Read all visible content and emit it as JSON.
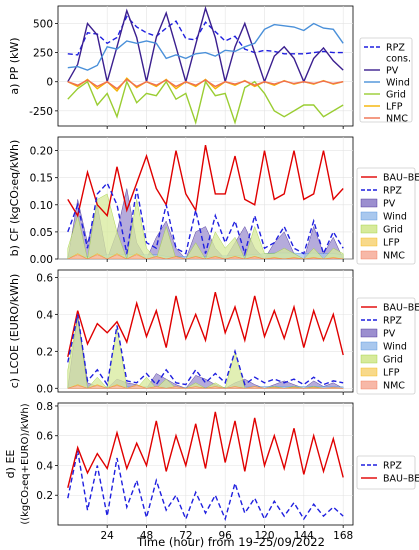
{
  "figure": {
    "xlabel": "Time (hour) from 19–25/09/2022",
    "xticks": [
      24,
      48,
      72,
      96,
      120,
      144,
      168
    ]
  },
  "colors": {
    "PV": "#3b1f8f",
    "Wind": "#4a90d9",
    "Grid": "#9acd32",
    "LFP": "#f4b400",
    "NMC": "#f07050",
    "RPZ": "#1f1fdf",
    "BAU": "#e00000",
    "PVfill": "#9c8fcf",
    "Windfill": "#a9c8ee",
    "Gridfill": "#d7ea9b",
    "LFPfill": "#f8d98a",
    "NMCfill": "#f7b8a8"
  },
  "chart_data": [
    {
      "type": "line",
      "panel": "a",
      "ylabel": "a) PP (kW)",
      "ylim": [
        -380,
        650
      ],
      "yticks": [
        -250,
        0,
        250,
        500
      ],
      "legend": [
        "RPZ cons.",
        "PV",
        "Wind",
        "Grid",
        "LFP",
        "NMC"
      ],
      "legend_labels": [
        "RPZ",
        "cons.",
        "PV",
        "Wind",
        "Grid",
        "LFP",
        "NMC"
      ],
      "x": [
        0,
        6,
        12,
        18,
        24,
        30,
        36,
        42,
        48,
        54,
        60,
        66,
        72,
        78,
        84,
        90,
        96,
        102,
        108,
        114,
        120,
        126,
        132,
        138,
        144,
        150,
        156,
        162,
        168
      ],
      "series": [
        {
          "name": "RPZ cons.",
          "values": [
            240,
            230,
            420,
            410,
            330,
            380,
            560,
            470,
            420,
            390,
            460,
            520,
            370,
            360,
            510,
            430,
            350,
            390,
            280,
            250,
            270,
            260,
            240,
            240,
            240,
            250,
            260,
            250,
            250
          ]
        },
        {
          "name": "PV",
          "values": [
            0,
            150,
            500,
            400,
            0,
            300,
            610,
            380,
            0,
            380,
            590,
            300,
            0,
            320,
            630,
            380,
            0,
            300,
            500,
            250,
            0,
            220,
            300,
            200,
            0,
            200,
            290,
            180,
            100
          ]
        },
        {
          "name": "Wind",
          "values": [
            120,
            130,
            100,
            140,
            300,
            280,
            350,
            330,
            350,
            330,
            200,
            230,
            200,
            240,
            250,
            220,
            270,
            260,
            300,
            330,
            450,
            490,
            480,
            470,
            440,
            500,
            460,
            450,
            330
          ]
        },
        {
          "name": "Grid",
          "values": [
            -150,
            -60,
            0,
            -200,
            -100,
            -300,
            0,
            -180,
            -100,
            -120,
            0,
            -150,
            -100,
            -350,
            0,
            -120,
            -100,
            -350,
            -50,
            0,
            -100,
            -250,
            -300,
            -250,
            -200,
            -200,
            -300,
            -250,
            -200
          ]
        },
        {
          "name": "LFP",
          "values": [
            0,
            -40,
            20,
            -60,
            0,
            -80,
            30,
            -50,
            0,
            -40,
            20,
            -60,
            0,
            -40,
            20,
            -60,
            0,
            -30,
            10,
            -40,
            0,
            -30,
            10,
            -20,
            0,
            -20,
            10,
            -20,
            0
          ]
        },
        {
          "name": "NMC",
          "values": [
            0,
            -30,
            15,
            -40,
            0,
            -60,
            20,
            -40,
            0,
            -30,
            15,
            -40,
            0,
            -30,
            15,
            -40,
            0,
            -20,
            5,
            -30,
            0,
            -20,
            5,
            -15,
            0,
            -15,
            5,
            -15,
            0
          ]
        }
      ]
    },
    {
      "type": "area",
      "panel": "b",
      "ylabel": "b) CF (kgCO₂eq/kWh)",
      "ylim": [
        0,
        0.225
      ],
      "yticks": [
        0.0,
        0.05,
        0.1,
        0.15,
        0.2
      ],
      "legend": [
        "BAU–BE",
        "RPZ",
        "PV",
        "Wind",
        "Grid",
        "LFP",
        "NMC"
      ],
      "x": [
        0,
        6,
        12,
        18,
        24,
        30,
        36,
        42,
        48,
        54,
        60,
        66,
        72,
        78,
        84,
        90,
        96,
        102,
        108,
        114,
        120,
        126,
        132,
        138,
        144,
        150,
        156,
        162,
        168
      ],
      "series": [
        {
          "name": "BAU–BE",
          "values": [
            0.11,
            0.08,
            0.16,
            0.1,
            0.08,
            0.17,
            0.09,
            0.14,
            0.19,
            0.13,
            0.1,
            0.2,
            0.12,
            0.09,
            0.21,
            0.12,
            0.12,
            0.19,
            0.11,
            0.1,
            0.2,
            0.11,
            0.12,
            0.2,
            0.11,
            0.12,
            0.2,
            0.11,
            0.13
          ]
        },
        {
          "name": "RPZ",
          "values": [
            0.05,
            0.1,
            0.02,
            0.12,
            0.14,
            0.1,
            0.01,
            0.13,
            0.03,
            0.02,
            0.1,
            0.02,
            0.01,
            0.09,
            0.01,
            0.08,
            0.03,
            0.07,
            0.01,
            0.08,
            0.02,
            0.03,
            0.06,
            0.02,
            0.01,
            0.07,
            0.01,
            0.05,
            0.02
          ]
        },
        {
          "name": "PV",
          "values": [
            0,
            0.11,
            0.03,
            0.1,
            0,
            0.05,
            0.13,
            0.03,
            0,
            0.04,
            0.07,
            0.02,
            0,
            0.05,
            0.06,
            0.02,
            0,
            0.03,
            0.06,
            0.02,
            0,
            0.03,
            0.05,
            0.01,
            0,
            0.06,
            0.01,
            0.04,
            0
          ]
        },
        {
          "name": "Wind",
          "values": [
            0.005,
            0.005,
            0.005,
            0.005,
            0.008,
            0.008,
            0.008,
            0.008,
            0.008,
            0.008,
            0.005,
            0.005,
            0.005,
            0.005,
            0.005,
            0.005,
            0.006,
            0.006,
            0.007,
            0.008,
            0.01,
            0.011,
            0.011,
            0.011,
            0.01,
            0.011,
            0.01,
            0.01,
            0.008
          ]
        },
        {
          "name": "Grid",
          "values": [
            0.02,
            0.08,
            0,
            0.11,
            0.12,
            0.05,
            0,
            0.11,
            0.02,
            0,
            0.06,
            0,
            0,
            0.03,
            0,
            0.05,
            0.02,
            0.04,
            0,
            0.06,
            0.01,
            0.01,
            0.02,
            0.01,
            0,
            0.02,
            0,
            0.02,
            0.01
          ]
        },
        {
          "name": "LFP",
          "values": [
            0,
            0.01,
            0,
            0.01,
            0,
            0.01,
            0,
            0.01,
            0,
            0.005,
            0,
            0.005,
            0,
            0.005,
            0,
            0.005,
            0,
            0.005,
            0,
            0.005,
            0,
            0.003,
            0,
            0.003,
            0,
            0.003,
            0,
            0.003,
            0
          ]
        },
        {
          "name": "NMC",
          "values": [
            0,
            0.008,
            0,
            0.008,
            0,
            0.008,
            0,
            0.008,
            0,
            0.004,
            0,
            0.004,
            0,
            0.004,
            0,
            0.004,
            0,
            0.004,
            0,
            0.004,
            0,
            0.002,
            0,
            0.002,
            0,
            0.002,
            0,
            0.002,
            0
          ]
        }
      ]
    },
    {
      "type": "area",
      "panel": "c",
      "ylabel": "c) LCOE (EURO/kWh)",
      "ylim": [
        -0.02,
        0.64
      ],
      "yticks": [
        0.0,
        0.2,
        0.4,
        0.6
      ],
      "legend": [
        "BAU–BE",
        "RPZ",
        "PV",
        "Wind",
        "Grid",
        "LFP",
        "NMC"
      ],
      "x": [
        0,
        6,
        12,
        18,
        24,
        30,
        36,
        42,
        48,
        54,
        60,
        66,
        72,
        78,
        84,
        90,
        96,
        102,
        108,
        114,
        120,
        126,
        132,
        138,
        144,
        150,
        156,
        162,
        168
      ],
      "series": [
        {
          "name": "BAU–BE",
          "values": [
            0.17,
            0.42,
            0.24,
            0.35,
            0.3,
            0.36,
            0.25,
            0.46,
            0.28,
            0.42,
            0.22,
            0.5,
            0.27,
            0.4,
            0.26,
            0.52,
            0.3,
            0.44,
            0.26,
            0.5,
            0.28,
            0.42,
            0.27,
            0.44,
            0.22,
            0.42,
            0.26,
            0.4,
            0.18
          ]
        },
        {
          "name": "RPZ",
          "values": [
            0.14,
            0.4,
            0.04,
            0.1,
            0.02,
            0.34,
            0.04,
            0.03,
            0.08,
            0.02,
            0.1,
            0.03,
            0.02,
            0.1,
            0.03,
            0.08,
            0.03,
            0.2,
            0.02,
            0.06,
            0.03,
            0.05,
            0.03,
            0.05,
            0.02,
            0.06,
            0.02,
            0.04,
            0.03
          ]
        },
        {
          "name": "PV",
          "values": [
            0,
            0.4,
            0.03,
            0.01,
            0,
            0.05,
            0.03,
            0.02,
            0,
            0.08,
            0.05,
            0.02,
            0,
            0.07,
            0.05,
            0.02,
            0,
            0.03,
            0.05,
            0.02,
            0,
            0.02,
            0.04,
            0.02,
            0,
            0.04,
            0.01,
            0.03,
            0
          ]
        },
        {
          "name": "Wind",
          "values": [
            0.005,
            0.005,
            0.005,
            0.005,
            0.008,
            0.008,
            0.008,
            0.008,
            0.008,
            0.008,
            0.005,
            0.005,
            0.005,
            0.005,
            0.005,
            0.005,
            0.006,
            0.006,
            0.007,
            0.008,
            0.01,
            0.011,
            0.011,
            0.011,
            0.01,
            0.011,
            0.01,
            0.01,
            0.008
          ]
        },
        {
          "name": "Grid",
          "values": [
            0.1,
            0.38,
            0,
            0.06,
            0,
            0.33,
            0,
            0,
            0.06,
            0,
            0.05,
            0,
            0,
            0.03,
            0,
            0.03,
            0,
            0.2,
            0,
            0.01,
            0,
            0.01,
            0,
            0.01,
            0,
            0.01,
            0,
            0,
            0
          ]
        },
        {
          "name": "LFP",
          "values": [
            0,
            0.02,
            0,
            0.02,
            0,
            0.02,
            0,
            0.02,
            0,
            0.01,
            0,
            0.01,
            0,
            0.01,
            0,
            0.01,
            0,
            0.01,
            0,
            0.01,
            0,
            0.005,
            0,
            0.005,
            0,
            0.005,
            0,
            0.005,
            0
          ]
        },
        {
          "name": "NMC",
          "values": [
            0,
            0.015,
            0,
            0.015,
            0,
            0.015,
            0,
            0.015,
            0,
            0.008,
            0,
            0.008,
            0,
            0.008,
            0,
            0.008,
            0,
            0.008,
            0,
            0.008,
            0,
            0.004,
            0,
            0.004,
            0,
            0.004,
            0,
            0.004,
            0
          ]
        }
      ]
    },
    {
      "type": "line",
      "panel": "d",
      "ylabel": "d) EE",
      "ylabel2": "((kgCO₂eq+EURO)/kWh)",
      "ylim": [
        0,
        0.82
      ],
      "yticks": [
        0.2,
        0.4,
        0.6,
        0.8
      ],
      "legend": [
        "RPZ",
        "BAU–BE"
      ],
      "x": [
        0,
        6,
        12,
        18,
        24,
        30,
        36,
        42,
        48,
        54,
        60,
        66,
        72,
        78,
        84,
        90,
        96,
        102,
        108,
        114,
        120,
        126,
        132,
        138,
        144,
        150,
        156,
        162,
        168
      ],
      "series": [
        {
          "name": "RPZ",
          "values": [
            0.18,
            0.5,
            0.1,
            0.4,
            0.06,
            0.45,
            0.12,
            0.3,
            0.05,
            0.3,
            0.1,
            0.2,
            0.04,
            0.22,
            0.08,
            0.2,
            0.04,
            0.28,
            0.08,
            0.18,
            0.04,
            0.16,
            0.06,
            0.15,
            0.04,
            0.14,
            0.06,
            0.12,
            0.06
          ]
        },
        {
          "name": "BAU–BE",
          "values": [
            0.25,
            0.52,
            0.35,
            0.48,
            0.38,
            0.62,
            0.38,
            0.55,
            0.4,
            0.7,
            0.36,
            0.6,
            0.4,
            0.68,
            0.38,
            0.76,
            0.42,
            0.7,
            0.36,
            0.72,
            0.4,
            0.6,
            0.38,
            0.65,
            0.34,
            0.6,
            0.36,
            0.58,
            0.32
          ]
        }
      ]
    }
  ]
}
